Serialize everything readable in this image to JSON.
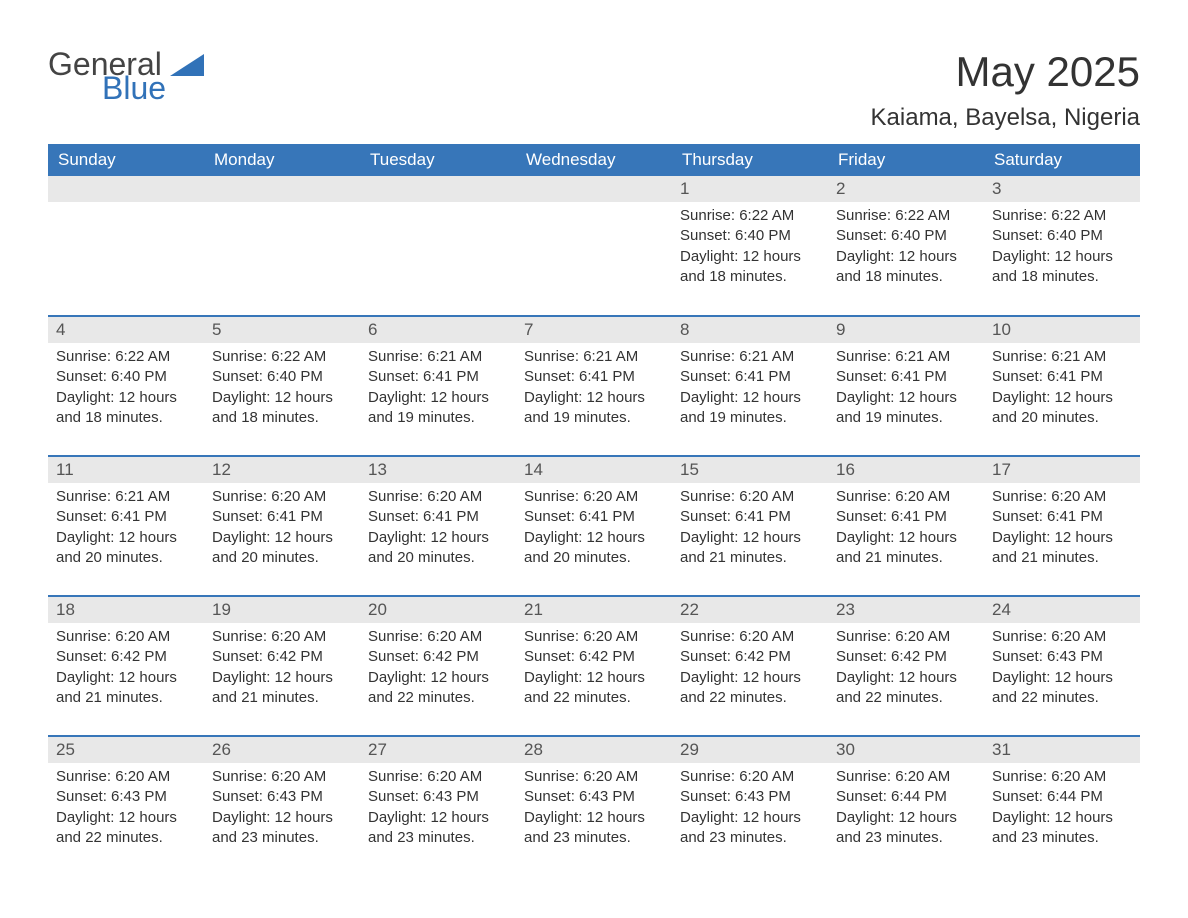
{
  "brand": {
    "part1": "General",
    "part2": "Blue"
  },
  "title": "May 2025",
  "location": "Kaiama, Bayelsa, Nigeria",
  "colors": {
    "header_bg": "#3776b9",
    "header_text": "#ffffff",
    "daynum_bg": "#e8e8e8",
    "row_sep": "#3776b9",
    "body_text": "#333333",
    "brand_blue": "#3172b8"
  },
  "typography": {
    "title_fontsize": 42,
    "location_fontsize": 24,
    "dayheader_fontsize": 17,
    "body_fontsize": 15
  },
  "dayHeaders": [
    "Sunday",
    "Monday",
    "Tuesday",
    "Wednesday",
    "Thursday",
    "Friday",
    "Saturday"
  ],
  "labels": {
    "sunrise": "Sunrise:",
    "sunset": "Sunset:",
    "daylight": "Daylight:"
  },
  "weeks": [
    [
      null,
      null,
      null,
      null,
      {
        "n": "1",
        "sr": "6:22 AM",
        "ss": "6:40 PM",
        "dl": "12 hours and 18 minutes."
      },
      {
        "n": "2",
        "sr": "6:22 AM",
        "ss": "6:40 PM",
        "dl": "12 hours and 18 minutes."
      },
      {
        "n": "3",
        "sr": "6:22 AM",
        "ss": "6:40 PM",
        "dl": "12 hours and 18 minutes."
      }
    ],
    [
      {
        "n": "4",
        "sr": "6:22 AM",
        "ss": "6:40 PM",
        "dl": "12 hours and 18 minutes."
      },
      {
        "n": "5",
        "sr": "6:22 AM",
        "ss": "6:40 PM",
        "dl": "12 hours and 18 minutes."
      },
      {
        "n": "6",
        "sr": "6:21 AM",
        "ss": "6:41 PM",
        "dl": "12 hours and 19 minutes."
      },
      {
        "n": "7",
        "sr": "6:21 AM",
        "ss": "6:41 PM",
        "dl": "12 hours and 19 minutes."
      },
      {
        "n": "8",
        "sr": "6:21 AM",
        "ss": "6:41 PM",
        "dl": "12 hours and 19 minutes."
      },
      {
        "n": "9",
        "sr": "6:21 AM",
        "ss": "6:41 PM",
        "dl": "12 hours and 19 minutes."
      },
      {
        "n": "10",
        "sr": "6:21 AM",
        "ss": "6:41 PM",
        "dl": "12 hours and 20 minutes."
      }
    ],
    [
      {
        "n": "11",
        "sr": "6:21 AM",
        "ss": "6:41 PM",
        "dl": "12 hours and 20 minutes."
      },
      {
        "n": "12",
        "sr": "6:20 AM",
        "ss": "6:41 PM",
        "dl": "12 hours and 20 minutes."
      },
      {
        "n": "13",
        "sr": "6:20 AM",
        "ss": "6:41 PM",
        "dl": "12 hours and 20 minutes."
      },
      {
        "n": "14",
        "sr": "6:20 AM",
        "ss": "6:41 PM",
        "dl": "12 hours and 20 minutes."
      },
      {
        "n": "15",
        "sr": "6:20 AM",
        "ss": "6:41 PM",
        "dl": "12 hours and 21 minutes."
      },
      {
        "n": "16",
        "sr": "6:20 AM",
        "ss": "6:41 PM",
        "dl": "12 hours and 21 minutes."
      },
      {
        "n": "17",
        "sr": "6:20 AM",
        "ss": "6:41 PM",
        "dl": "12 hours and 21 minutes."
      }
    ],
    [
      {
        "n": "18",
        "sr": "6:20 AM",
        "ss": "6:42 PM",
        "dl": "12 hours and 21 minutes."
      },
      {
        "n": "19",
        "sr": "6:20 AM",
        "ss": "6:42 PM",
        "dl": "12 hours and 21 minutes."
      },
      {
        "n": "20",
        "sr": "6:20 AM",
        "ss": "6:42 PM",
        "dl": "12 hours and 22 minutes."
      },
      {
        "n": "21",
        "sr": "6:20 AM",
        "ss": "6:42 PM",
        "dl": "12 hours and 22 minutes."
      },
      {
        "n": "22",
        "sr": "6:20 AM",
        "ss": "6:42 PM",
        "dl": "12 hours and 22 minutes."
      },
      {
        "n": "23",
        "sr": "6:20 AM",
        "ss": "6:42 PM",
        "dl": "12 hours and 22 minutes."
      },
      {
        "n": "24",
        "sr": "6:20 AM",
        "ss": "6:43 PM",
        "dl": "12 hours and 22 minutes."
      }
    ],
    [
      {
        "n": "25",
        "sr": "6:20 AM",
        "ss": "6:43 PM",
        "dl": "12 hours and 22 minutes."
      },
      {
        "n": "26",
        "sr": "6:20 AM",
        "ss": "6:43 PM",
        "dl": "12 hours and 23 minutes."
      },
      {
        "n": "27",
        "sr": "6:20 AM",
        "ss": "6:43 PM",
        "dl": "12 hours and 23 minutes."
      },
      {
        "n": "28",
        "sr": "6:20 AM",
        "ss": "6:43 PM",
        "dl": "12 hours and 23 minutes."
      },
      {
        "n": "29",
        "sr": "6:20 AM",
        "ss": "6:43 PM",
        "dl": "12 hours and 23 minutes."
      },
      {
        "n": "30",
        "sr": "6:20 AM",
        "ss": "6:44 PM",
        "dl": "12 hours and 23 minutes."
      },
      {
        "n": "31",
        "sr": "6:20 AM",
        "ss": "6:44 PM",
        "dl": "12 hours and 23 minutes."
      }
    ]
  ]
}
